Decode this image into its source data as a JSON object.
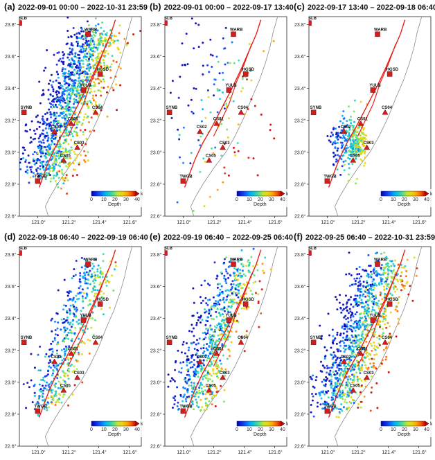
{
  "colors": {
    "fault": "#e8201a",
    "coast": "#8a8a8a",
    "station_fill": "#d11e1e",
    "station_stroke": "#7a0000"
  },
  "map": {
    "lat_ticks": [
      "22.6°",
      "22.8°",
      "23.0°",
      "23.2°",
      "23.4°",
      "23.6°",
      "23.8°"
    ],
    "lon_ticks": [
      "121.0°",
      "121.2°",
      "121.4°",
      "121.6°"
    ],
    "colorbar": {
      "ticks": [
        "0",
        "10",
        "20",
        "30",
        "40"
      ],
      "unit": "km",
      "label": "Depth"
    }
  },
  "stations": [
    {
      "name": "SSLB",
      "lon": 120.88,
      "lat": 23.81,
      "shape": "square"
    },
    {
      "name": "WARB",
      "lon": 121.33,
      "lat": 23.74,
      "shape": "square"
    },
    {
      "name": "HGSD",
      "lon": 121.41,
      "lat": 23.49,
      "shape": "square"
    },
    {
      "name": "YULB",
      "lon": 121.3,
      "lat": 23.39,
      "shape": "square"
    },
    {
      "name": "SYNB",
      "lon": 120.91,
      "lat": 23.25,
      "shape": "square"
    },
    {
      "name": "CS04",
      "lon": 121.38,
      "lat": 23.25,
      "shape": "triangle"
    },
    {
      "name": "CS01",
      "lon": 121.22,
      "lat": 23.18,
      "shape": "triangle"
    },
    {
      "name": "CS02",
      "lon": 121.11,
      "lat": 23.13,
      "shape": "triangle"
    },
    {
      "name": "CS03",
      "lon": 121.26,
      "lat": 23.03,
      "shape": "triangle"
    },
    {
      "name": "CS05",
      "lon": 121.17,
      "lat": 22.95,
      "shape": "triangle"
    },
    {
      "name": "TWGB",
      "lon": 121.0,
      "lat": 22.82,
      "shape": "square"
    }
  ],
  "panels": [
    {
      "label": "(a)",
      "title": "2022-09-01 00:00 – 2022-10-31 23:59",
      "n": 1300,
      "spread": 1.0,
      "seed": 11,
      "focus": "full"
    },
    {
      "label": "(b)",
      "title": "2022-09-01 00:00 – 2022-09-17 13:40",
      "n": 150,
      "spread": 1.0,
      "seed": 23,
      "focus": "sparse"
    },
    {
      "label": "(c)",
      "title": "2022-09-17 13:40 – 2022-09-18 06:40",
      "n": 320,
      "spread": 0.35,
      "seed": 37,
      "focus": "cluster"
    },
    {
      "label": "(d)",
      "title": "2022-09-18 06:40 – 2022-09-19 06:40",
      "n": 520,
      "spread": 0.7,
      "seed": 41,
      "focus": "full"
    },
    {
      "label": "(e)",
      "title": "2022-09-19 06:40 – 2022-09-25 06:40",
      "n": 750,
      "spread": 0.9,
      "seed": 53,
      "focus": "full"
    },
    {
      "label": "(f)",
      "title": "2022-09-25 06:40 – 2022-10-31 23:59",
      "n": 1100,
      "spread": 1.0,
      "seed": 67,
      "focus": "full"
    }
  ]
}
